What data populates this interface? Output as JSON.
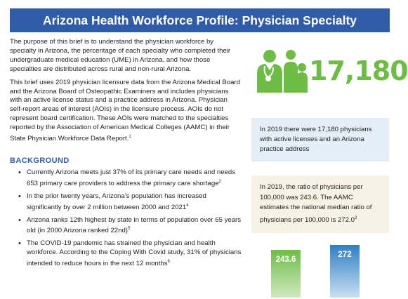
{
  "header": {
    "title": "Arizona Health Workforce Profile: Physician Specialty"
  },
  "intro": {
    "paragraph1": "The purpose of this brief is to understand the physician workforce by specialty in Arizona, the percentage of each specialty who completed their undergraduate medical education (UME) in Arizona, and how those specialties are distributed across rural and non-rural Arizona.",
    "paragraph2": "This brief uses 2019 physician licensure data from the Arizona Medical Board and the Arizona Board of Osteopathic Examiners and includes physicians with an active license status and a practice address in Arizona. Physician self-report areas of interest (AOIs) in the licensure process. AOIs do not represent board certification. These AOIs were matched to the specialties reported by the Association of American Medical Colleges (AAMC) in their State Physician Workforce Data Report.",
    "paragraph2_sup": "1"
  },
  "background": {
    "heading": "BACKGROUND",
    "items": [
      {
        "text": "Currently Arizona meets just 37% of its primary care needs and needs 653 primary care providers to address the primary care shortage",
        "sup": "2"
      },
      {
        "text": "In the prior twenty years, Arizona’s population has increased significantly by over 2 million between 2000 and 2021",
        "sup": "4"
      },
      {
        "text": "Arizona ranks 12th highest by state in terms of population over 65 years old (in 2000 Arizona ranked 22nd)",
        "sup": "5"
      },
      {
        "text": "The COVID-19 pandemic has strained the physician and health workforce. According to the Coping With Covid study, 31% of physicians intended to reduce hours in the next 12 months",
        "sup": "6"
      }
    ]
  },
  "stats": {
    "physician_count": "17,180",
    "count_note": "In 2019 there were 17,180 physicians with active licenses and an Arizona practice address",
    "ratio_note": "In 2019, the ratio of physicians per 100,000 was 243.6. The AAMC estimates the national median ratio of physicians per 100,000 is 272.0",
    "ratio_note_sup": "2",
    "colors": {
      "green": "#6dbd45",
      "blue": "#2f7fc4",
      "title_bg": "#2f5ba8"
    }
  },
  "chart_data": {
    "type": "bar",
    "categories": [
      "",
      ""
    ],
    "values": [
      243.6,
      272
    ],
    "value_labels": [
      "243.6",
      "272"
    ],
    "colors": [
      "#6dbd45",
      "#2f7fc4"
    ]
  }
}
